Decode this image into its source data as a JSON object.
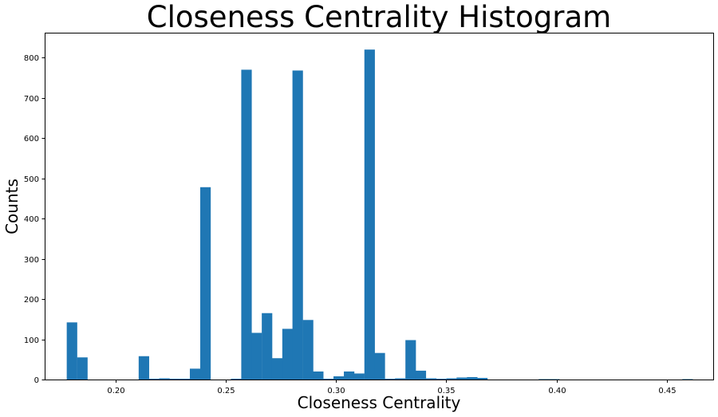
{
  "chart_data": {
    "type": "bar",
    "title": "Closeness Centrality Histogram",
    "xlabel": "Closeness Centrality",
    "ylabel": "Counts",
    "xlim": [
      0.168,
      0.471
    ],
    "ylim": [
      0,
      862
    ],
    "xticks": [
      0.2,
      0.25,
      0.3,
      0.35,
      0.4,
      0.45
    ],
    "xtick_labels": [
      "0.20",
      "0.25",
      "0.30",
      "0.35",
      "0.40",
      "0.45"
    ],
    "yticks": [
      0,
      100,
      200,
      300,
      400,
      500,
      600,
      700,
      800
    ],
    "ytick_labels": [
      "0",
      "100",
      "200",
      "300",
      "400",
      "500",
      "600",
      "700",
      "800"
    ],
    "bin_width": 0.00465,
    "bar_color": "#1f77b4",
    "grid": false,
    "bins": [
      {
        "x0": 0.178,
        "count": 142
      },
      {
        "x0": 0.1827,
        "count": 55
      },
      {
        "x0": 0.2106,
        "count": 58
      },
      {
        "x0": 0.2152,
        "count": 2
      },
      {
        "x0": 0.2199,
        "count": 3
      },
      {
        "x0": 0.2245,
        "count": 2
      },
      {
        "x0": 0.2292,
        "count": 2
      },
      {
        "x0": 0.2338,
        "count": 27
      },
      {
        "x0": 0.2385,
        "count": 478
      },
      {
        "x0": 0.2524,
        "count": 2
      },
      {
        "x0": 0.2571,
        "count": 770
      },
      {
        "x0": 0.2617,
        "count": 116
      },
      {
        "x0": 0.2664,
        "count": 165
      },
      {
        "x0": 0.271,
        "count": 53
      },
      {
        "x0": 0.2757,
        "count": 126
      },
      {
        "x0": 0.2803,
        "count": 768
      },
      {
        "x0": 0.285,
        "count": 148
      },
      {
        "x0": 0.2896,
        "count": 20
      },
      {
        "x0": 0.2943,
        "count": 2
      },
      {
        "x0": 0.2989,
        "count": 8
      },
      {
        "x0": 0.3036,
        "count": 20
      },
      {
        "x0": 0.3082,
        "count": 15
      },
      {
        "x0": 0.3129,
        "count": 820
      },
      {
        "x0": 0.3175,
        "count": 66
      },
      {
        "x0": 0.3222,
        "count": 2
      },
      {
        "x0": 0.3268,
        "count": 3
      },
      {
        "x0": 0.3315,
        "count": 98
      },
      {
        "x0": 0.3361,
        "count": 22
      },
      {
        "x0": 0.3408,
        "count": 3
      },
      {
        "x0": 0.3454,
        "count": 2
      },
      {
        "x0": 0.3501,
        "count": 3
      },
      {
        "x0": 0.3547,
        "count": 5
      },
      {
        "x0": 0.3594,
        "count": 6
      },
      {
        "x0": 0.364,
        "count": 4
      },
      {
        "x0": 0.3919,
        "count": 1
      },
      {
        "x0": 0.3966,
        "count": 1
      },
      {
        "x0": 0.457,
        "count": 1
      }
    ]
  }
}
